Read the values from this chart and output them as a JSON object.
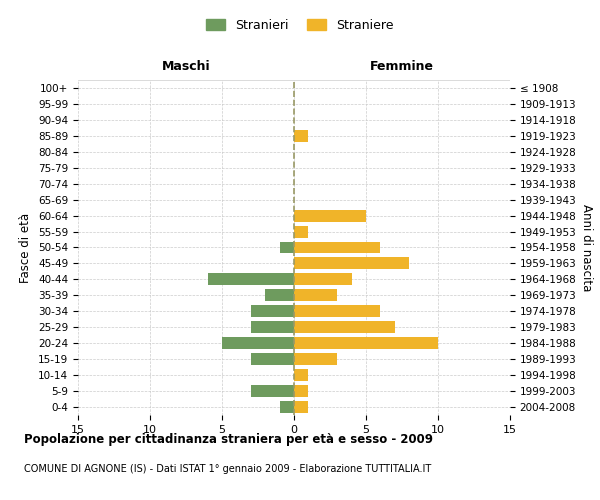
{
  "age_groups": [
    "0-4",
    "5-9",
    "10-14",
    "15-19",
    "20-24",
    "25-29",
    "30-34",
    "35-39",
    "40-44",
    "45-49",
    "50-54",
    "55-59",
    "60-64",
    "65-69",
    "70-74",
    "75-79",
    "80-84",
    "85-89",
    "90-94",
    "95-99",
    "100+"
  ],
  "birth_years": [
    "2004-2008",
    "1999-2003",
    "1994-1998",
    "1989-1993",
    "1984-1988",
    "1979-1983",
    "1974-1978",
    "1969-1973",
    "1964-1968",
    "1959-1963",
    "1954-1958",
    "1949-1953",
    "1944-1948",
    "1939-1943",
    "1934-1938",
    "1929-1933",
    "1924-1928",
    "1919-1923",
    "1914-1918",
    "1909-1913",
    "≤ 1908"
  ],
  "maschi": [
    1,
    3,
    0,
    3,
    5,
    3,
    3,
    2,
    6,
    0,
    1,
    0,
    0,
    0,
    0,
    0,
    0,
    0,
    0,
    0,
    0
  ],
  "femmine": [
    1,
    1,
    1,
    3,
    10,
    7,
    6,
    3,
    4,
    8,
    6,
    1,
    5,
    0,
    0,
    0,
    0,
    1,
    0,
    0,
    0
  ],
  "color_maschi": "#6e9b5e",
  "color_femmine": "#f0b429",
  "xlim": 15,
  "title": "Popolazione per cittadinanza straniera per età e sesso - 2009",
  "subtitle": "COMUNE DI AGNONE (IS) - Dati ISTAT 1° gennaio 2009 - Elaborazione TUTTITALIA.IT",
  "ylabel_left": "Fasce di età",
  "ylabel_right": "Anni di nascita",
  "legend_maschi": "Stranieri",
  "legend_femmine": "Straniere",
  "header_left": "Maschi",
  "header_right": "Femmine",
  "background_color": "#ffffff",
  "grid_color": "#cccccc"
}
